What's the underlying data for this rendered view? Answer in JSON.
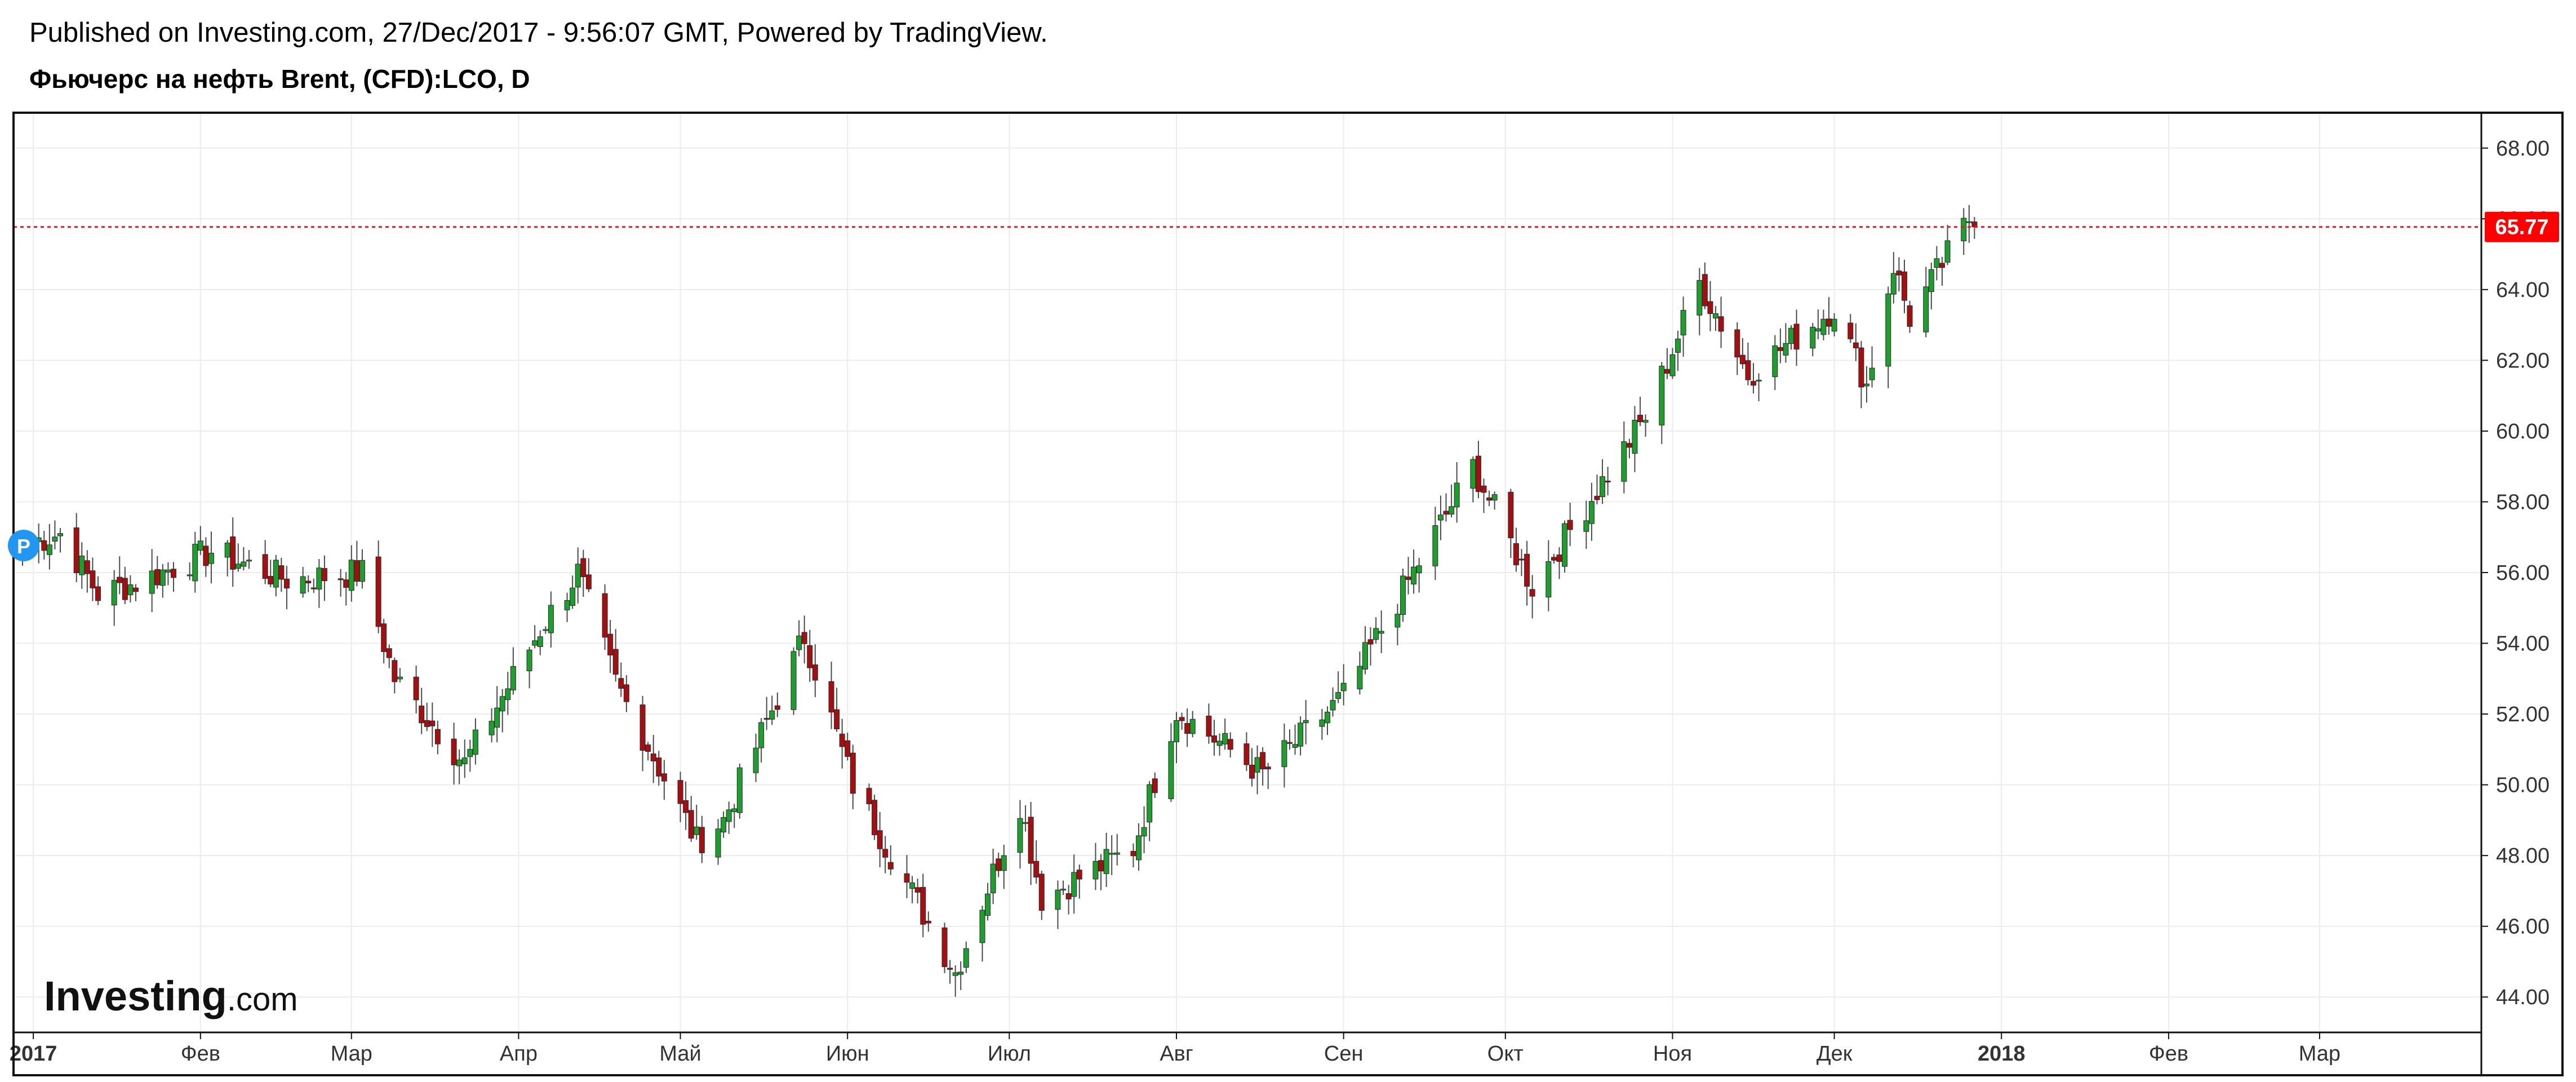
{
  "header": {
    "published_line": "Published on Investing.com, 27/Dec/2017 - 9:56:07 GMT, Powered by TradingView.",
    "symbol_line": "Фьючерс на нефть Brent, (CFD):LCO, D"
  },
  "logo": {
    "brand": "Investing",
    "suffix": ".com"
  },
  "price_marker": {
    "badge": "P"
  },
  "colors": {
    "up": "#1e9e2f",
    "down": "#a40f12",
    "wick": "#4a4a4a",
    "last_price_line": "#e8191c",
    "last_price_badge": "#ff0000",
    "grid": "#ececec",
    "frame": "#111111",
    "marker_badge": "#2196f3"
  },
  "chart_data": {
    "type": "candlestick",
    "title": "Фьючерс на нефть Brent, (CFD):LCO, D",
    "xlabel": "",
    "ylabel": "",
    "x_start": "2016-12-30",
    "ylim": [
      43.0,
      69.0
    ],
    "xlim": [
      "2016-12-30",
      "2018-03-31"
    ],
    "grid": true,
    "last_price": 65.77,
    "last_price_label": "65.77",
    "y_ticks": [
      44,
      46,
      48,
      50,
      52,
      54,
      56,
      58,
      60,
      62,
      64,
      66,
      68
    ],
    "y_tick_labels": [
      "44.00",
      "46.00",
      "48.00",
      "50.00",
      "52.00",
      "54.00",
      "56.00",
      "58.00",
      "60.00",
      "62.00",
      "64.00",
      "66.00",
      "68.00"
    ],
    "x_tick_labels": [
      {
        "date": "2017-01-01",
        "label": "2017",
        "bold": true
      },
      {
        "date": "2017-02-01",
        "label": "Фев",
        "bold": false
      },
      {
        "date": "2017-03-01",
        "label": "Мар",
        "bold": false
      },
      {
        "date": "2017-04-01",
        "label": "Апр",
        "bold": false
      },
      {
        "date": "2017-05-01",
        "label": "Май",
        "bold": false
      },
      {
        "date": "2017-06-01",
        "label": "Июн",
        "bold": false
      },
      {
        "date": "2017-07-01",
        "label": "Июл",
        "bold": false
      },
      {
        "date": "2017-08-01",
        "label": "Авг",
        "bold": false
      },
      {
        "date": "2017-09-01",
        "label": "Сен",
        "bold": false
      },
      {
        "date": "2017-10-01",
        "label": "Окт",
        "bold": false
      },
      {
        "date": "2017-11-01",
        "label": "Ноя",
        "bold": false
      },
      {
        "date": "2017-12-01",
        "label": "Дек",
        "bold": false
      },
      {
        "date": "2018-01-01",
        "label": "2018",
        "bold": true
      },
      {
        "date": "2018-02-01",
        "label": "Фев",
        "bold": false
      },
      {
        "date": "2018-03-01",
        "label": "Мар",
        "bold": false
      }
    ],
    "key_closes": [
      {
        "date": "2016-12-30",
        "close": 56.8
      },
      {
        "date": "2017-01-06",
        "close": 57.1
      },
      {
        "date": "2017-01-13",
        "close": 55.4
      },
      {
        "date": "2017-01-20",
        "close": 55.7
      },
      {
        "date": "2017-02-03",
        "close": 56.6
      },
      {
        "date": "2017-02-17",
        "close": 55.8
      },
      {
        "date": "2017-03-03",
        "close": 56.0
      },
      {
        "date": "2017-03-09",
        "close": 53.0
      },
      {
        "date": "2017-03-22",
        "close": 50.6
      },
      {
        "date": "2017-04-05",
        "close": 54.4
      },
      {
        "date": "2017-04-12",
        "close": 56.0
      },
      {
        "date": "2017-04-19",
        "close": 52.9
      },
      {
        "date": "2017-05-04",
        "close": 48.4
      },
      {
        "date": "2017-05-09",
        "close": 49.0
      },
      {
        "date": "2017-05-24",
        "close": 54.2
      },
      {
        "date": "2017-06-02",
        "close": 50.0
      },
      {
        "date": "2017-06-21",
        "close": 44.7
      },
      {
        "date": "2017-07-03",
        "close": 49.5
      },
      {
        "date": "2017-07-07",
        "close": 46.8
      },
      {
        "date": "2017-07-24",
        "close": 48.2
      },
      {
        "date": "2017-08-01",
        "close": 52.1
      },
      {
        "date": "2017-08-17",
        "close": 50.3
      },
      {
        "date": "2017-09-01",
        "close": 52.5
      },
      {
        "date": "2017-09-25",
        "close": 59.0
      },
      {
        "date": "2017-10-06",
        "close": 55.6
      },
      {
        "date": "2017-10-27",
        "close": 60.4
      },
      {
        "date": "2017-11-06",
        "close": 64.2
      },
      {
        "date": "2017-11-15",
        "close": 61.6
      },
      {
        "date": "2017-12-01",
        "close": 63.5
      },
      {
        "date": "2017-12-07",
        "close": 61.3
      },
      {
        "date": "2017-12-12",
        "close": 64.7
      },
      {
        "date": "2017-12-15",
        "close": 63.2
      },
      {
        "date": "2017-12-26",
        "close": 66.0
      },
      {
        "date": "2017-12-27",
        "close": 65.77
      }
    ]
  }
}
